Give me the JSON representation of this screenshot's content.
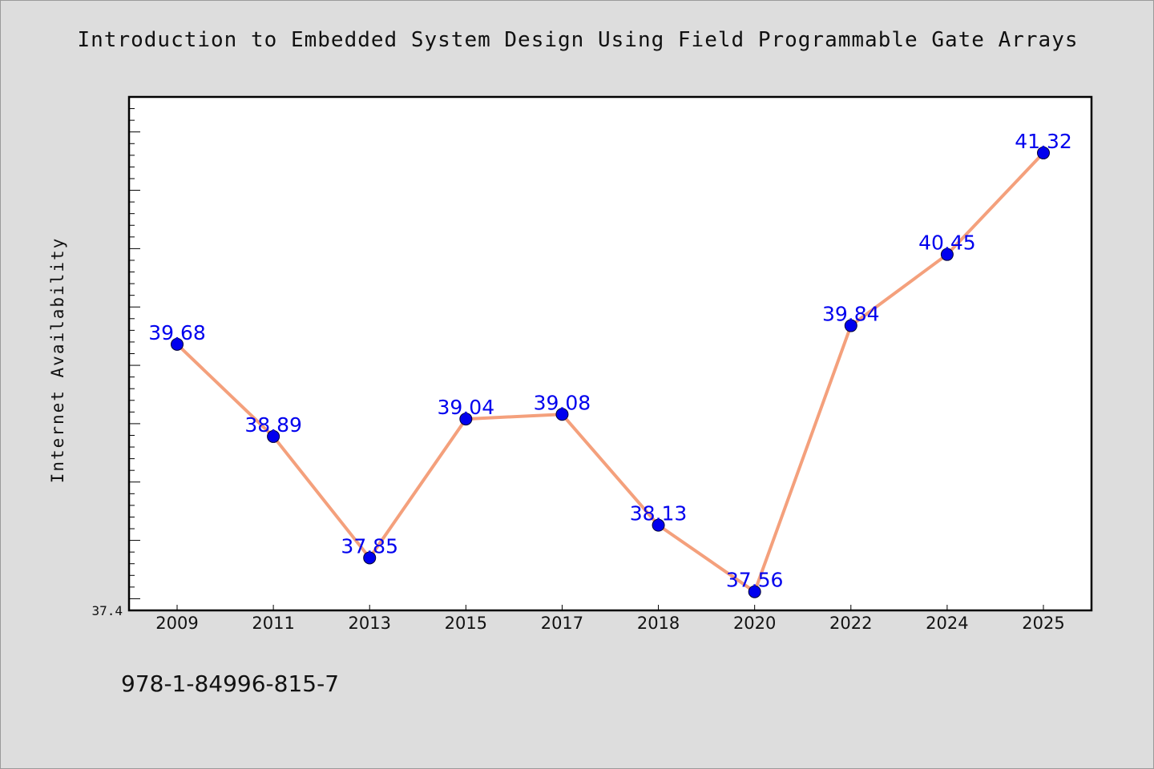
{
  "chart_data": {
    "type": "line",
    "title": "Introduction to Embedded System Design Using Field Programmable Gate Arrays",
    "xlabel": "",
    "ylabel": "Internet Availability",
    "categories": [
      "2009",
      "2011",
      "2013",
      "2015",
      "2017",
      "2018",
      "2020",
      "2022",
      "2024",
      "2025"
    ],
    "series": [
      {
        "values": [
          39.68,
          38.89,
          37.85,
          39.04,
          39.08,
          38.13,
          37.56,
          39.84,
          40.45,
          41.32
        ],
        "data_labels": [
          "39.68",
          "38.89",
          "37.85",
          "39.04",
          "39.08",
          "38.13",
          "37.56",
          "39.84",
          "40.45",
          "41.32"
        ]
      }
    ],
    "ylim": [
      37.4,
      41.8
    ],
    "y_tick_labels": [
      "37.4"
    ],
    "grid": false,
    "legend": "none",
    "colors": {
      "line": "#f4a07c",
      "marker": "#0000ee",
      "marker_edge": "#000033",
      "data_label": "#0000ee",
      "plot_background": "#ffffff",
      "figure_background": "#dddddd"
    }
  },
  "footer": {
    "isbn": "978-1-84996-815-7"
  }
}
